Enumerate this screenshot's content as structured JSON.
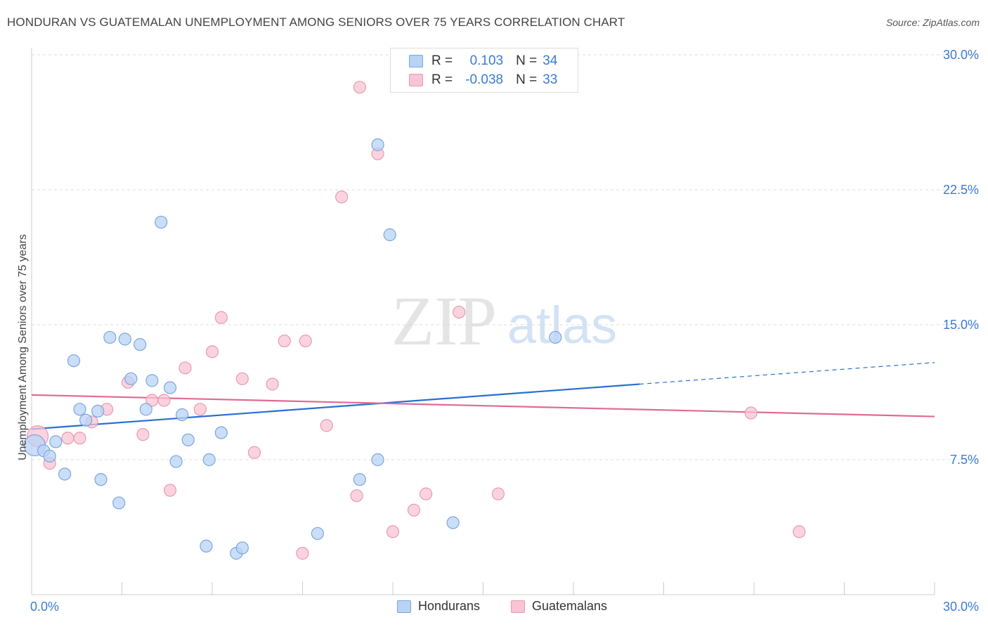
{
  "title": "HONDURAN VS GUATEMALAN UNEMPLOYMENT AMONG SENIORS OVER 75 YEARS CORRELATION CHART",
  "source": "Source: ZipAtlas.com",
  "watermark": {
    "zip": "ZIP",
    "atlas": "atlas"
  },
  "colors": {
    "blue_fill": "#b9d3f5",
    "blue_stroke": "#7aa6df",
    "blue_line": "#2a6fd1",
    "pink_fill": "#f9c4d3",
    "pink_stroke": "#e79ab2",
    "pink_line": "#e06a94",
    "axis_label": "#3a7bd5",
    "grid": "#dddddd"
  },
  "legend": {
    "r_label": "R =",
    "n_label": "N =",
    "rows": [
      {
        "r": "0.103",
        "n": "34"
      },
      {
        "r": "-0.038",
        "n": "33"
      }
    ]
  },
  "bottom_legend": [
    "Hondurans",
    "Guatemalans"
  ],
  "chart_data": {
    "type": "scatter",
    "xlabel": "",
    "ylabel": "Unemployment Among Seniors over 75 years",
    "xlim": [
      0,
      30
    ],
    "ylim": [
      0,
      30
    ],
    "x_tick_labels": [
      "0.0%",
      "30.0%"
    ],
    "y_ticks": [
      7.5,
      15.0,
      22.5,
      30.0
    ],
    "y_tick_labels": [
      "7.5%",
      "15.0%",
      "22.5%",
      "30.0%"
    ],
    "grid": "horizontal dashed",
    "series": [
      {
        "name": "Hondurans",
        "points": [
          [
            0.1,
            8.3
          ],
          [
            0.4,
            8.0
          ],
          [
            0.6,
            7.7
          ],
          [
            0.8,
            8.5
          ],
          [
            1.1,
            6.7
          ],
          [
            1.4,
            13.0
          ],
          [
            1.6,
            10.3
          ],
          [
            1.8,
            9.7
          ],
          [
            2.2,
            10.2
          ],
          [
            2.3,
            6.4
          ],
          [
            2.6,
            14.3
          ],
          [
            2.9,
            5.1
          ],
          [
            3.1,
            14.2
          ],
          [
            3.3,
            12.0
          ],
          [
            3.6,
            13.9
          ],
          [
            3.8,
            10.3
          ],
          [
            4.0,
            11.9
          ],
          [
            4.3,
            20.7
          ],
          [
            4.6,
            11.5
          ],
          [
            4.8,
            7.4
          ],
          [
            5.0,
            10.0
          ],
          [
            5.2,
            8.6
          ],
          [
            5.8,
            2.7
          ],
          [
            5.9,
            7.5
          ],
          [
            6.3,
            9.0
          ],
          [
            6.8,
            2.3
          ],
          [
            7.0,
            2.6
          ],
          [
            9.5,
            3.4
          ],
          [
            10.9,
            6.4
          ],
          [
            11.5,
            25.0
          ],
          [
            11.5,
            7.5
          ],
          [
            11.9,
            20.0
          ],
          [
            14.0,
            4.0
          ],
          [
            17.4,
            14.3
          ]
        ],
        "trend": {
          "x": [
            0,
            20.2
          ],
          "y": [
            9.2,
            11.7
          ],
          "dashed_to": [
            30,
            12.9
          ]
        }
      },
      {
        "name": "Guatemalans",
        "points": [
          [
            0.2,
            8.8
          ],
          [
            0.6,
            7.3
          ],
          [
            1.2,
            8.7
          ],
          [
            1.6,
            8.7
          ],
          [
            2.0,
            9.6
          ],
          [
            2.5,
            10.3
          ],
          [
            3.2,
            11.8
          ],
          [
            3.7,
            8.9
          ],
          [
            4.0,
            10.8
          ],
          [
            4.4,
            10.8
          ],
          [
            4.6,
            5.8
          ],
          [
            5.1,
            12.6
          ],
          [
            5.6,
            10.3
          ],
          [
            6.0,
            13.5
          ],
          [
            6.3,
            15.4
          ],
          [
            7.0,
            12.0
          ],
          [
            7.4,
            7.9
          ],
          [
            8.0,
            11.7
          ],
          [
            8.4,
            14.1
          ],
          [
            9.0,
            2.3
          ],
          [
            9.1,
            14.1
          ],
          [
            9.8,
            9.4
          ],
          [
            10.3,
            22.1
          ],
          [
            10.8,
            5.5
          ],
          [
            10.9,
            28.2
          ],
          [
            11.5,
            24.5
          ],
          [
            12.0,
            3.5
          ],
          [
            12.7,
            4.7
          ],
          [
            13.1,
            5.6
          ],
          [
            14.2,
            15.7
          ],
          [
            15.5,
            5.6
          ],
          [
            23.9,
            10.1
          ],
          [
            25.5,
            3.5
          ]
        ],
        "trend": {
          "x": [
            0,
            30
          ],
          "y": [
            11.1,
            9.9
          ]
        }
      }
    ]
  }
}
